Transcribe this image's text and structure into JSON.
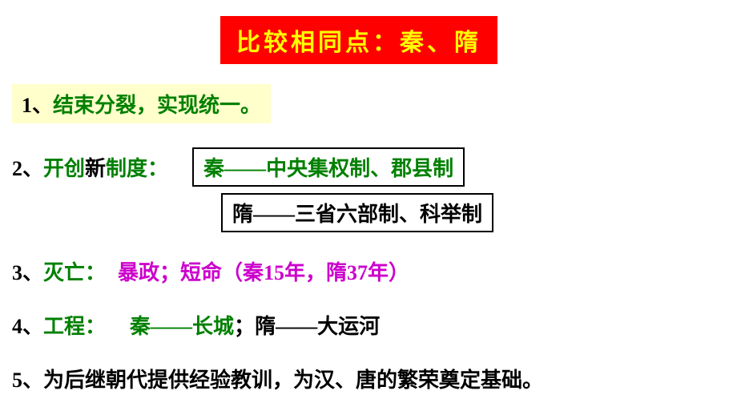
{
  "title": "比较相同点：秦、隋",
  "point1": {
    "num": "1、",
    "text": "结束分裂，实现统一。"
  },
  "point2": {
    "num": "2、",
    "label_part1": "开创",
    "label_part2": "新",
    "label_part3": "制度：",
    "box1": "秦——中央集权制、郡县制",
    "box2": "隋——三省六部制、科举制"
  },
  "point3": {
    "num": "3、",
    "label": "灭亡：",
    "detail": "暴政；短命（秦15年，隋37年）"
  },
  "point4": {
    "num": "4、",
    "label": "工程：",
    "part1": "秦——长城",
    "semicolon": "；",
    "part2": "隋——大运河"
  },
  "point5": {
    "num": "5、",
    "text": "为后继朝代提供经验教训，为汉、唐的繁荣奠定基础。"
  },
  "colors": {
    "title_bg": "#fe0000",
    "title_text": "#ffff00",
    "highlight_bg": "#ffffcc",
    "green": "#008000",
    "black": "#000000",
    "magenta": "#cc00cc"
  }
}
